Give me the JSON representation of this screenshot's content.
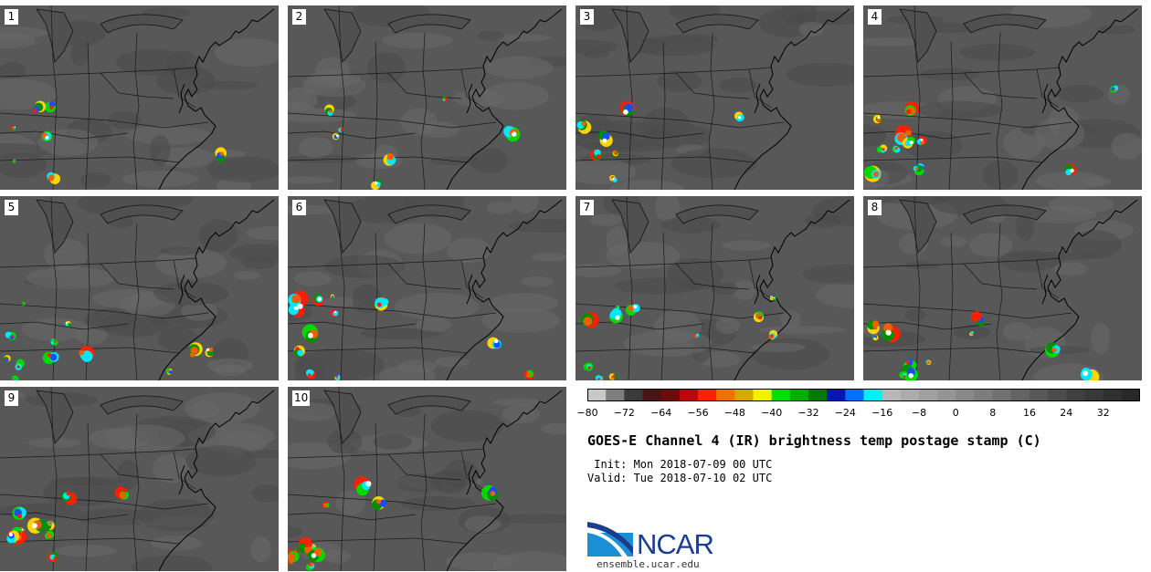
{
  "panels": [
    {
      "label": "1"
    },
    {
      "label": "2"
    },
    {
      "label": "3"
    },
    {
      "label": "4"
    },
    {
      "label": "5"
    },
    {
      "label": "6"
    },
    {
      "label": "7"
    },
    {
      "label": "8"
    },
    {
      "label": "9"
    },
    {
      "label": "10"
    }
  ],
  "colorbar": {
    "ticks": [
      "−80",
      "−72",
      "−64",
      "−56",
      "−48",
      "−40",
      "−32",
      "−24",
      "−16",
      "−8",
      "0",
      "8",
      "16",
      "24",
      "32"
    ],
    "tick_values": [
      -80,
      -72,
      -64,
      -56,
      -48,
      -40,
      -32,
      -24,
      -16,
      -8,
      0,
      8,
      16,
      24,
      32
    ],
    "range": [
      -80,
      40
    ],
    "colors": [
      "#c8c8c8",
      "#7d7d7d",
      "#3a3a3a",
      "#4a1414",
      "#6e0a0a",
      "#b40a0a",
      "#ff2000",
      "#f07000",
      "#d8a800",
      "#f0f000",
      "#00e000",
      "#00b000",
      "#007a00",
      "#0018b0",
      "#0070ff",
      "#00f0ff",
      "#b8b8b8",
      "#acacac",
      "#a0a0a0",
      "#949494",
      "#888888",
      "#7c7c7c",
      "#707070",
      "#646464",
      "#585858",
      "#4c4c4c",
      "#404040",
      "#383838",
      "#303030",
      "#282828"
    ]
  },
  "title": "GOES-E Channel 4 (IR) brightness temp postage stamp (C)",
  "init": " Init: Mon 2018-07-09 00 UTC",
  "valid": "Valid: Tue 2018-07-10 02 UTC",
  "logo": {
    "text": "NCAR",
    "url": "ensemble.ucar.edu",
    "colors": {
      "dark": "#1b3d8f",
      "light": "#1a8fd6"
    }
  }
}
